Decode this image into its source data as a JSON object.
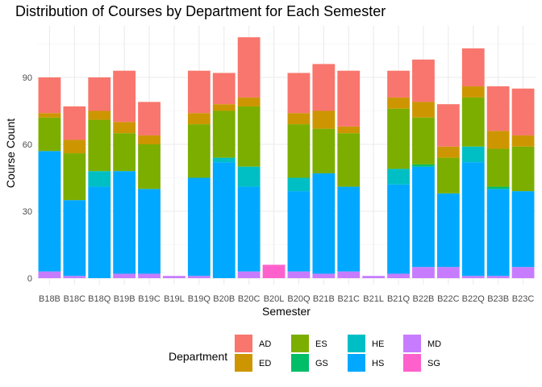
{
  "chart_data": {
    "type": "bar",
    "stacked": true,
    "title": "Distribution of Courses by Department for Each Semester",
    "xlabel": "Semester",
    "ylabel": "Course Count",
    "ylim": [
      0,
      115
    ],
    "yticks": [
      0,
      30,
      60,
      90
    ],
    "grid": true,
    "legend_title": "Department",
    "legend_position": "bottom",
    "categories": [
      "B18B",
      "B18C",
      "B18Q",
      "B19B",
      "B19C",
      "B19L",
      "B19Q",
      "B20B",
      "B20C",
      "B20L",
      "B20Q",
      "B21B",
      "B21C",
      "B21L",
      "B21Q",
      "B22B",
      "B22C",
      "B22Q",
      "B23B",
      "B23C"
    ],
    "series": [
      {
        "name": "MD",
        "color": "#C77CFF",
        "values": [
          3,
          1,
          0,
          2,
          2,
          1,
          1,
          0,
          3,
          0,
          3,
          2,
          3,
          1,
          2,
          5,
          5,
          1,
          1,
          5
        ]
      },
      {
        "name": "SG",
        "color": "#FF61CC",
        "values": [
          0,
          0,
          0,
          0,
          0,
          0,
          0,
          0,
          0,
          6,
          0,
          0,
          0,
          0,
          0,
          0,
          0,
          0,
          0,
          0
        ]
      },
      {
        "name": "HS",
        "color": "#00A9FF",
        "values": [
          54,
          34,
          41,
          46,
          38,
          0,
          44,
          52,
          38,
          0,
          36,
          45,
          38,
          0,
          40,
          45,
          33,
          51,
          39,
          34
        ]
      },
      {
        "name": "HE",
        "color": "#00BFC4",
        "values": [
          0,
          0,
          7,
          0,
          0,
          0,
          0,
          2,
          9,
          0,
          6,
          0,
          0,
          0,
          7,
          0,
          0,
          7,
          0,
          0
        ]
      },
      {
        "name": "GS",
        "color": "#00BE67",
        "values": [
          0,
          0,
          0,
          0,
          0,
          0,
          0,
          0,
          0,
          0,
          0,
          0,
          0,
          0,
          0,
          1,
          0,
          0,
          1,
          0
        ]
      },
      {
        "name": "ES",
        "color": "#7CAE00",
        "values": [
          15,
          21,
          23,
          17,
          20,
          0,
          24,
          21,
          27,
          0,
          24,
          20,
          24,
          0,
          27,
          21,
          16,
          22,
          17,
          20
        ]
      },
      {
        "name": "ED",
        "color": "#CD9600",
        "values": [
          2,
          6,
          4,
          5,
          4,
          0,
          5,
          3,
          4,
          0,
          5,
          8,
          3,
          0,
          5,
          7,
          5,
          5,
          8,
          5
        ]
      },
      {
        "name": "AD",
        "color": "#F8766D",
        "values": [
          16,
          15,
          15,
          23,
          15,
          0,
          19,
          14,
          27,
          0,
          18,
          21,
          25,
          0,
          12,
          19,
          19,
          17,
          20,
          21
        ]
      }
    ],
    "legend_order": [
      "AD",
      "ED",
      "ES",
      "GS",
      "HE",
      "HS",
      "MD",
      "SG"
    ]
  }
}
